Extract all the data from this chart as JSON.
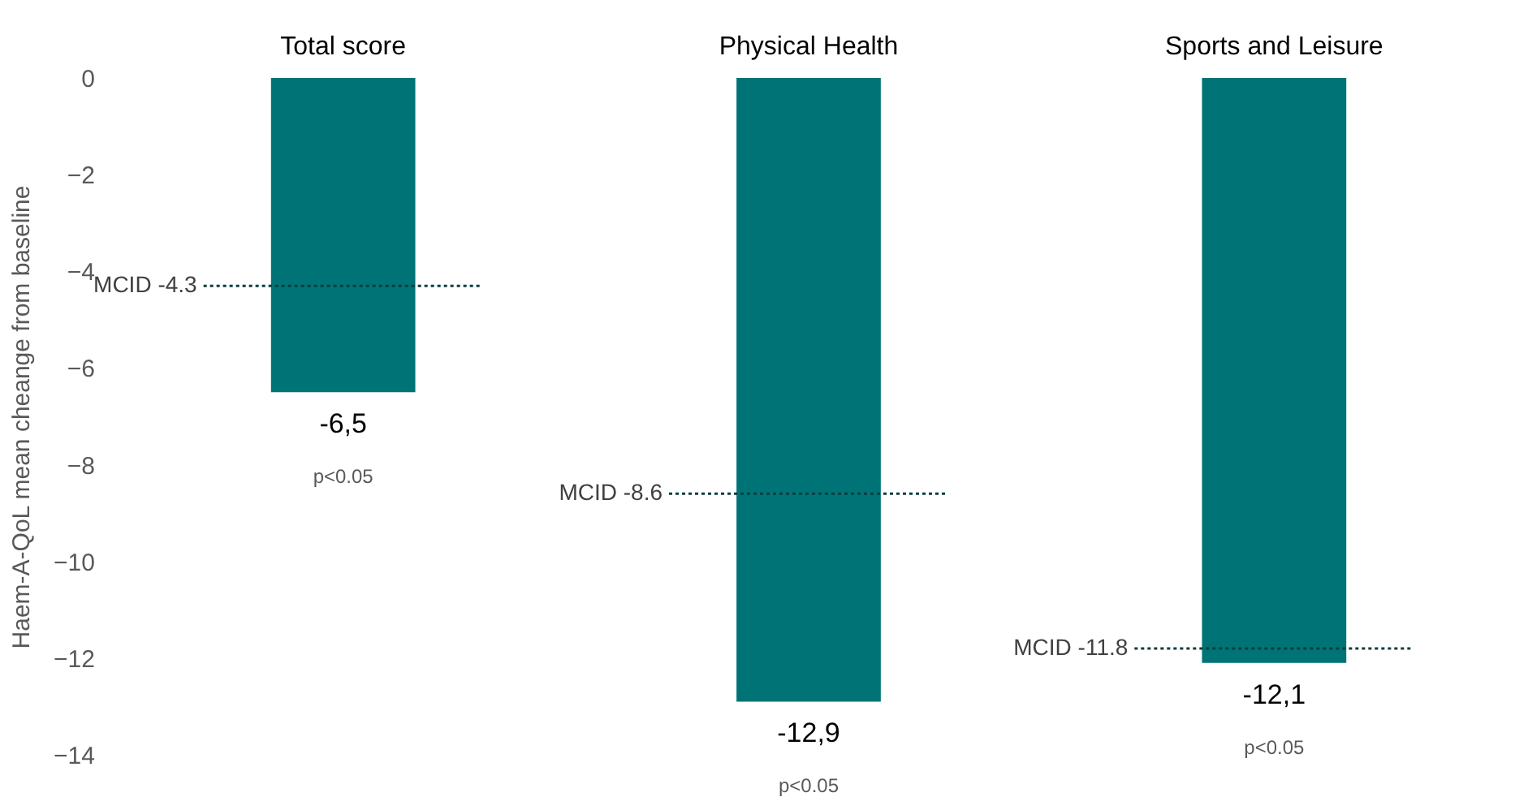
{
  "chart_data": {
    "type": "bar",
    "ylabel": "Haem-A-QoL mean cheange from baseline",
    "categories": [
      "Total score",
      "Physical Health",
      "Sports and Leisure"
    ],
    "values": [
      -6.5,
      -12.9,
      -12.1
    ],
    "color": "#007377",
    "value_labels": [
      "-6,5",
      "-12,9",
      "-12,1"
    ],
    "ylim": [
      -14,
      0
    ],
    "yticks": [
      0,
      -2,
      -4,
      -6,
      -8,
      -10,
      -12,
      -14
    ],
    "grid": false,
    "ref_lines": [
      {
        "axis": "y",
        "value": -4.3,
        "label": "MCID -4.3",
        "color": "#0b3d3d",
        "line_style": "dotted"
      },
      {
        "axis": "y",
        "value": -8.6,
        "label": "MCID -8.6",
        "color": "#0b3d3d",
        "line_style": "dotted"
      },
      {
        "axis": "y",
        "value": -11.8,
        "label": "MCID -11.8",
        "color": "#0b3d3d",
        "line_style": "dotted"
      }
    ],
    "annotations": [
      "p<0.05",
      "p<0.05",
      "p<0.05"
    ]
  }
}
